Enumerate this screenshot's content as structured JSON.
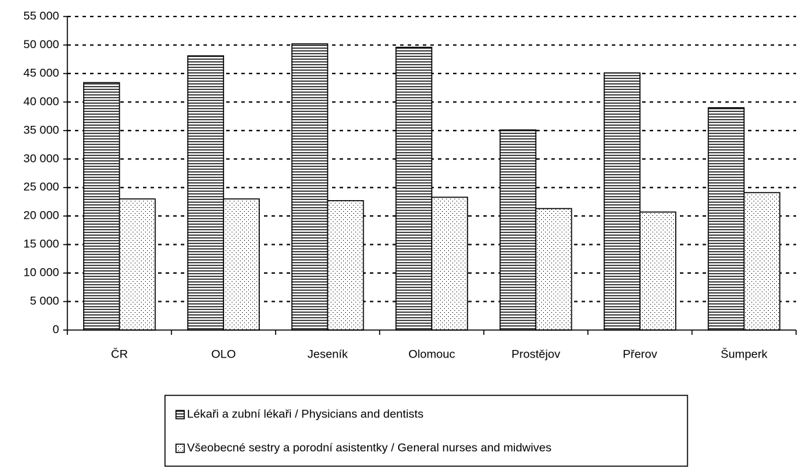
{
  "chart_data": {
    "type": "bar",
    "categories": [
      "ČR",
      "OLO",
      "Jeseník",
      "Olomouc",
      "Prostějov",
      "Přerov",
      "Šumperk"
    ],
    "series": [
      {
        "name": "Lékaři a zubní lékaři / Physicians and dentists",
        "color": "#000000",
        "pattern": "horizontal-lines",
        "values": [
          43400,
          48100,
          50200,
          49600,
          35100,
          45100,
          39000
        ]
      },
      {
        "name": "Všeobecné sestry a porodní asistentky / General nurses and midwives",
        "color": "#000000",
        "pattern": "dots",
        "values": [
          23000,
          23000,
          22700,
          23300,
          21300,
          20700,
          24100
        ]
      }
    ],
    "ylim": [
      0,
      55000
    ],
    "yticks": [
      0,
      {
        "value": 5000,
        "label": "5 000"
      },
      {
        "value": 10000,
        "label": "10 000"
      },
      {
        "value": 15000,
        "label": "15 000"
      },
      {
        "value": 20000,
        "label": "20 000"
      },
      {
        "value": 25000,
        "label": "25 000"
      },
      {
        "value": 30000,
        "label": "30 000"
      },
      {
        "value": 35000,
        "label": "35 000"
      },
      {
        "value": 40000,
        "label": "40 000"
      },
      {
        "value": 45000,
        "label": "45 000"
      },
      {
        "value": 50000,
        "label": "50 000"
      },
      {
        "value": 55000,
        "label": "55 000"
      }
    ],
    "grid": true,
    "legend": "bottom"
  }
}
